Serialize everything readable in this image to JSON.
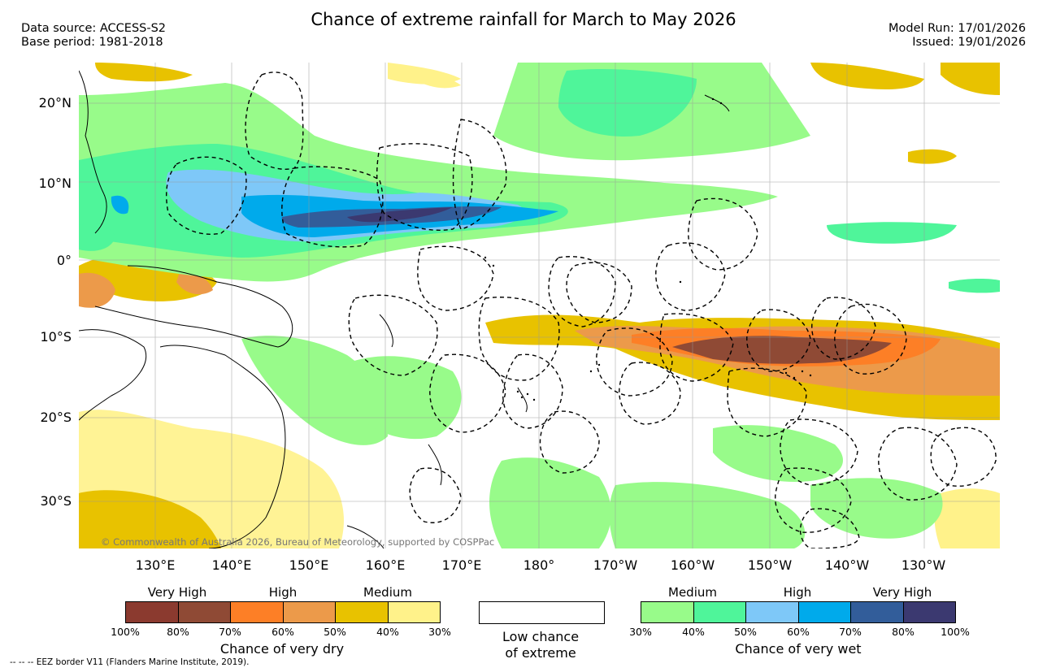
{
  "header": {
    "title": "Chance of extreme rainfall for March to May 2026",
    "data_source": "Data source: ACCESS-S2",
    "base_period": "Base period: 1981-2018",
    "model_run": "Model Run: 17/01/2026",
    "issued": "Issued: 19/01/2026"
  },
  "map": {
    "lat_labels": [
      "20°N",
      "10°N",
      "0°",
      "10°S",
      "20°S",
      "30°S"
    ],
    "lon_labels": [
      "130°E",
      "140°E",
      "150°E",
      "160°E",
      "170°E",
      "180°",
      "170°W",
      "160°W",
      "150°W",
      "140°W",
      "130°W"
    ],
    "copyright": "© Commonwealth of Australia 2026, Bureau of Meteorology, supported by COSPPac"
  },
  "legend": {
    "dry": {
      "headings": [
        "Very High",
        "High",
        "Medium"
      ],
      "ticks": [
        "100%",
        "80%",
        "70%",
        "60%",
        "50%",
        "40%",
        "30%"
      ],
      "colors": [
        "#8b3a2f",
        "#8f4a35",
        "#fd7f26",
        "#ec9a4a",
        "#e8c200",
        "#fff28a"
      ],
      "caption": "Chance of very dry"
    },
    "low": {
      "caption_line1": "Low chance",
      "caption_line2": "of extreme"
    },
    "wet": {
      "headings": [
        "Medium",
        "High",
        "Very High"
      ],
      "ticks": [
        "30%",
        "40%",
        "50%",
        "60%",
        "70%",
        "80%",
        "100%"
      ],
      "colors": [
        "#98fb8a",
        "#4ff59a",
        "#7ec8f8",
        "#00aaeb",
        "#325d9a",
        "#3b3970"
      ],
      "caption": "Chance of very wet"
    }
  },
  "footer": "-- -- -- EEZ border V11 (Flanders Marine Institute, 2019)."
}
